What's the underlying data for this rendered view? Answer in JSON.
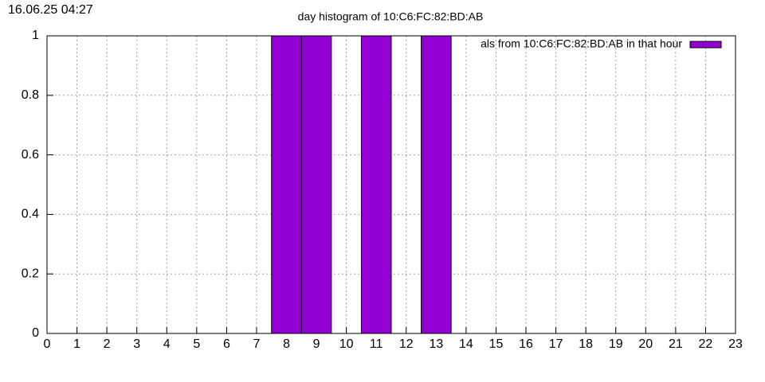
{
  "timestamp": "16.06.25 04:27",
  "chart_data": {
    "type": "histogram",
    "title": "day histogram of 10:C6:FC:82:BD:AB",
    "legend_label": "als from 10:C6:FC:82:BD:AB in that hour",
    "legend_position": "top-right",
    "color": "#9400d3",
    "x": [
      8,
      9,
      11,
      13
    ],
    "values": [
      1,
      1,
      1,
      1
    ],
    "xlim": [
      0,
      23
    ],
    "xticks": [
      0,
      1,
      2,
      3,
      4,
      5,
      6,
      7,
      8,
      9,
      10,
      11,
      12,
      13,
      14,
      15,
      16,
      17,
      18,
      19,
      20,
      21,
      22,
      23
    ],
    "ylim": [
      0,
      1
    ],
    "yticks": [
      0,
      0.2,
      0.4,
      0.6,
      0.8,
      1
    ],
    "grid": true
  }
}
